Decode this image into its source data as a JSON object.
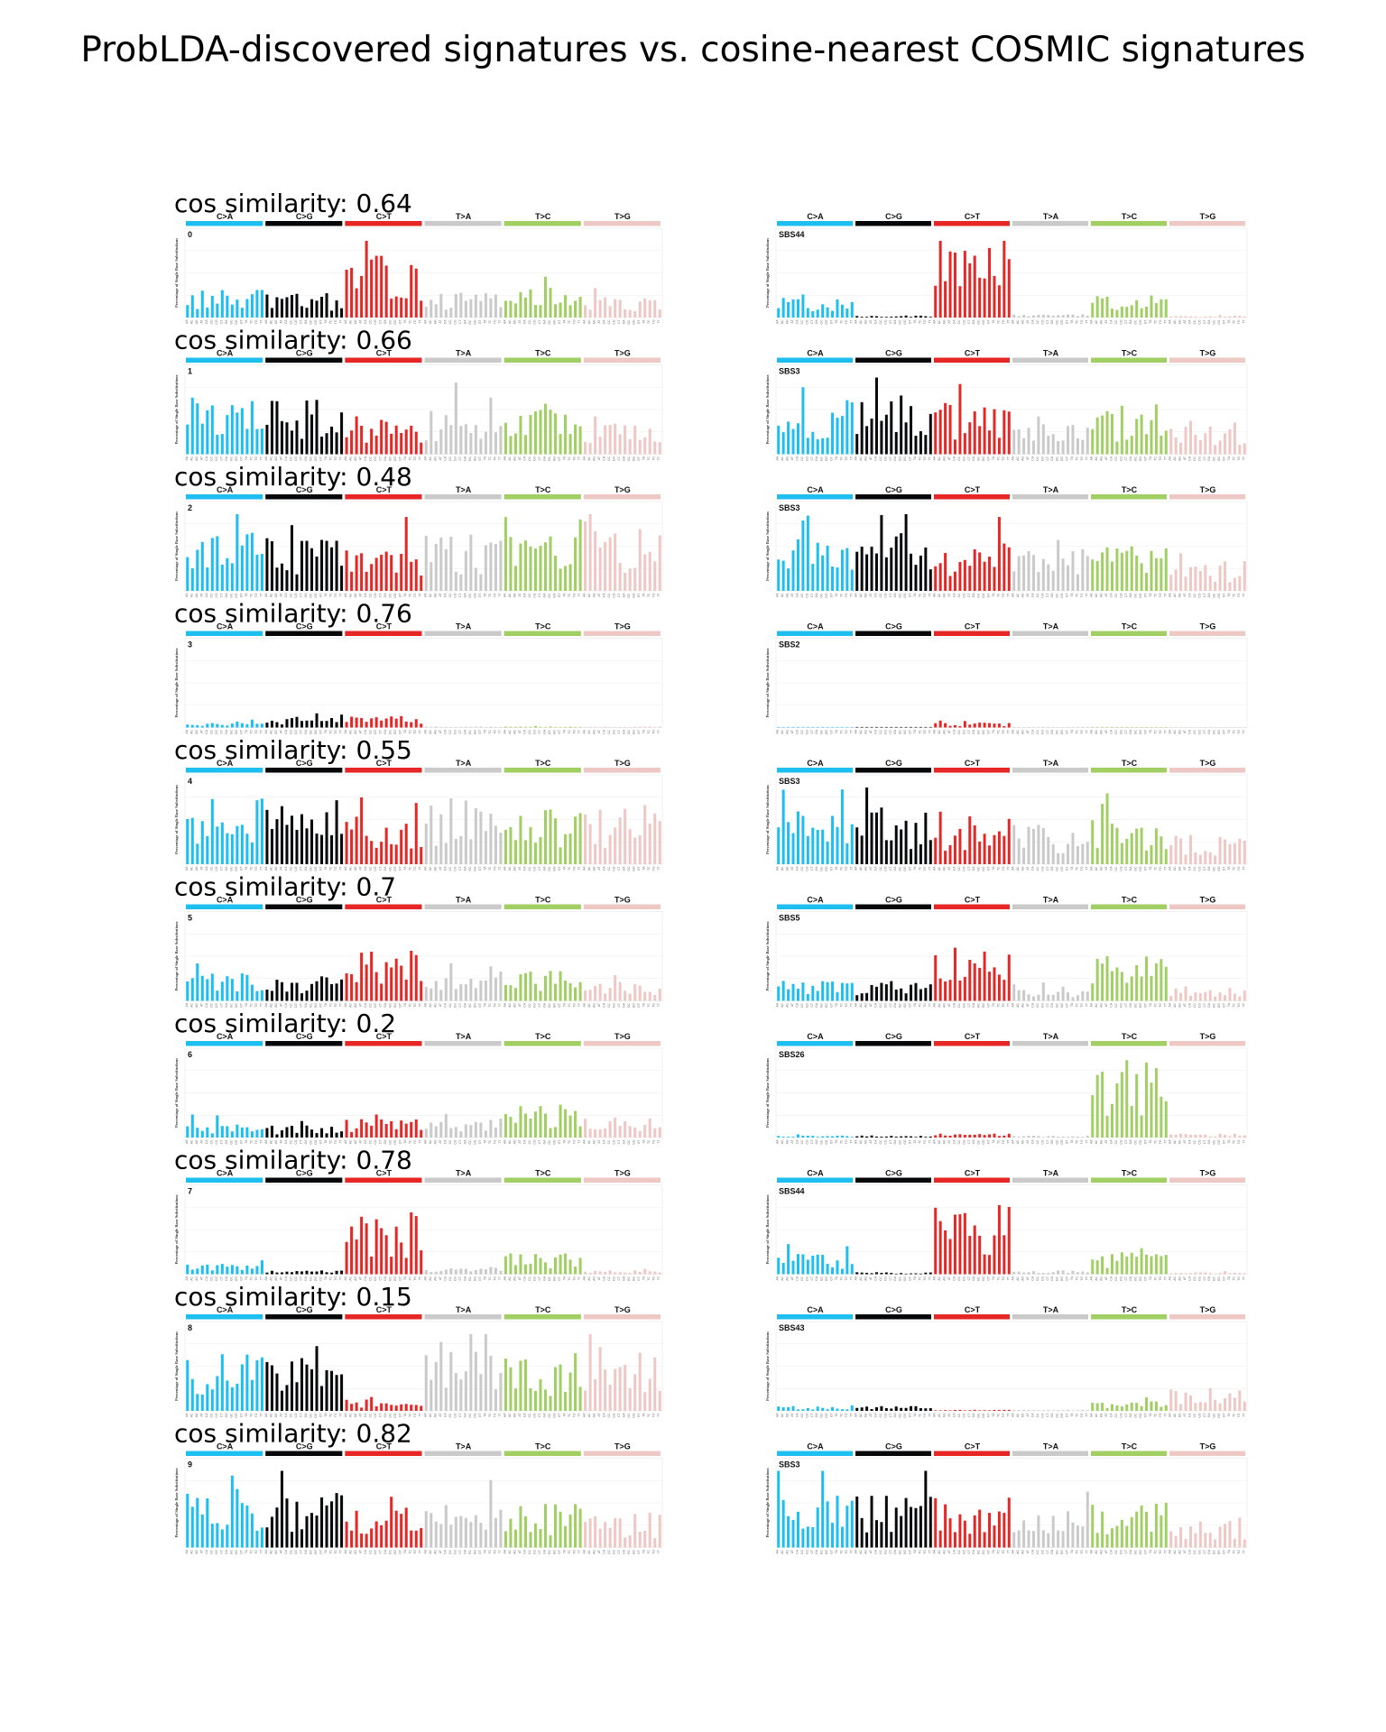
{
  "title": "ProbLDA-discovered signatures vs. cosine-nearest COSMIC signatures",
  "similarity_prefix": "cos similarity: ",
  "ylabel": "Percentage of Single Base Substitutions",
  "categories": [
    "C>A",
    "C>G",
    "C>T",
    "T>A",
    "T>C",
    "T>G"
  ],
  "colors": {
    "C>A": "#1ebff0",
    "C>G": "#050708",
    "C>T": "#e62725",
    "T>A": "#cbcacb",
    "T>C": "#a1cf64",
    "T>G": "#edc8c5"
  },
  "chart_data": {
    "type": "bar",
    "x_label_note": "96 trinucleotide contexts per panel, 16 per substitution class",
    "rows": [
      {
        "similarity": "0.64",
        "left": {
          "label": "0",
          "class_levels": [
            0.28,
            0.25,
            0.62,
            0.25,
            0.3,
            0.2
          ]
        },
        "right": {
          "label": "SBS44",
          "class_levels": [
            0.2,
            0.02,
            0.7,
            0.04,
            0.22,
            0.02
          ]
        }
      },
      {
        "similarity": "0.66",
        "left": {
          "label": "1",
          "class_levels": [
            0.6,
            0.55,
            0.4,
            0.45,
            0.45,
            0.4
          ]
        },
        "right": {
          "label": "SBS3",
          "class_levels": [
            0.55,
            0.55,
            0.5,
            0.4,
            0.45,
            0.3
          ]
        }
      },
      {
        "similarity": "0.48",
        "left": {
          "label": "2",
          "class_levels": [
            0.62,
            0.6,
            0.5,
            0.6,
            0.55,
            0.6
          ]
        },
        "right": {
          "label": "SBS3",
          "class_levels": [
            0.55,
            0.55,
            0.5,
            0.4,
            0.45,
            0.3
          ]
        }
      },
      {
        "similarity": "0.76",
        "left": {
          "label": "3",
          "class_levels": [
            0.05,
            0.1,
            0.12,
            0.01,
            0.01,
            0.01
          ]
        },
        "right": {
          "label": "SBS2",
          "class_levels": [
            0.0,
            0.0,
            0.05,
            0.0,
            0.0,
            0.0
          ]
        }
      },
      {
        "similarity": "0.55",
        "left": {
          "label": "4",
          "class_levels": [
            0.7,
            0.65,
            0.5,
            0.6,
            0.55,
            0.6
          ]
        },
        "right": {
          "label": "SBS3",
          "class_levels": [
            0.55,
            0.55,
            0.5,
            0.4,
            0.45,
            0.3
          ]
        }
      },
      {
        "similarity": "0.7",
        "left": {
          "label": "5",
          "class_levels": [
            0.28,
            0.25,
            0.55,
            0.25,
            0.3,
            0.2
          ]
        },
        "right": {
          "label": "SBS5",
          "class_levels": [
            0.2,
            0.2,
            0.5,
            0.12,
            0.45,
            0.15
          ]
        }
      },
      {
        "similarity": "0.2",
        "left": {
          "label": "6",
          "class_levels": [
            0.15,
            0.12,
            0.2,
            0.2,
            0.35,
            0.2
          ]
        },
        "right": {
          "label": "SBS26",
          "class_levels": [
            0.02,
            0.02,
            0.04,
            0.02,
            0.8,
            0.04
          ]
        }
      },
      {
        "similarity": "0.78",
        "left": {
          "label": "7",
          "class_levels": [
            0.12,
            0.04,
            0.6,
            0.08,
            0.22,
            0.04
          ]
        },
        "right": {
          "label": "SBS44",
          "class_levels": [
            0.2,
            0.02,
            0.7,
            0.04,
            0.22,
            0.02
          ]
        }
      },
      {
        "similarity": "0.15",
        "left": {
          "label": "8",
          "class_levels": [
            0.6,
            0.65,
            0.12,
            0.6,
            0.55,
            0.65
          ]
        },
        "right": {
          "label": "SBS43",
          "class_levels": [
            0.05,
            0.05,
            0.01,
            0.01,
            0.1,
            0.25
          ]
        }
      },
      {
        "similarity": "0.82",
        "left": {
          "label": "9",
          "class_levels": [
            0.6,
            0.55,
            0.45,
            0.45,
            0.45,
            0.35
          ]
        },
        "right": {
          "label": "SBS3",
          "class_levels": [
            0.55,
            0.55,
            0.5,
            0.4,
            0.45,
            0.3
          ]
        }
      }
    ]
  }
}
